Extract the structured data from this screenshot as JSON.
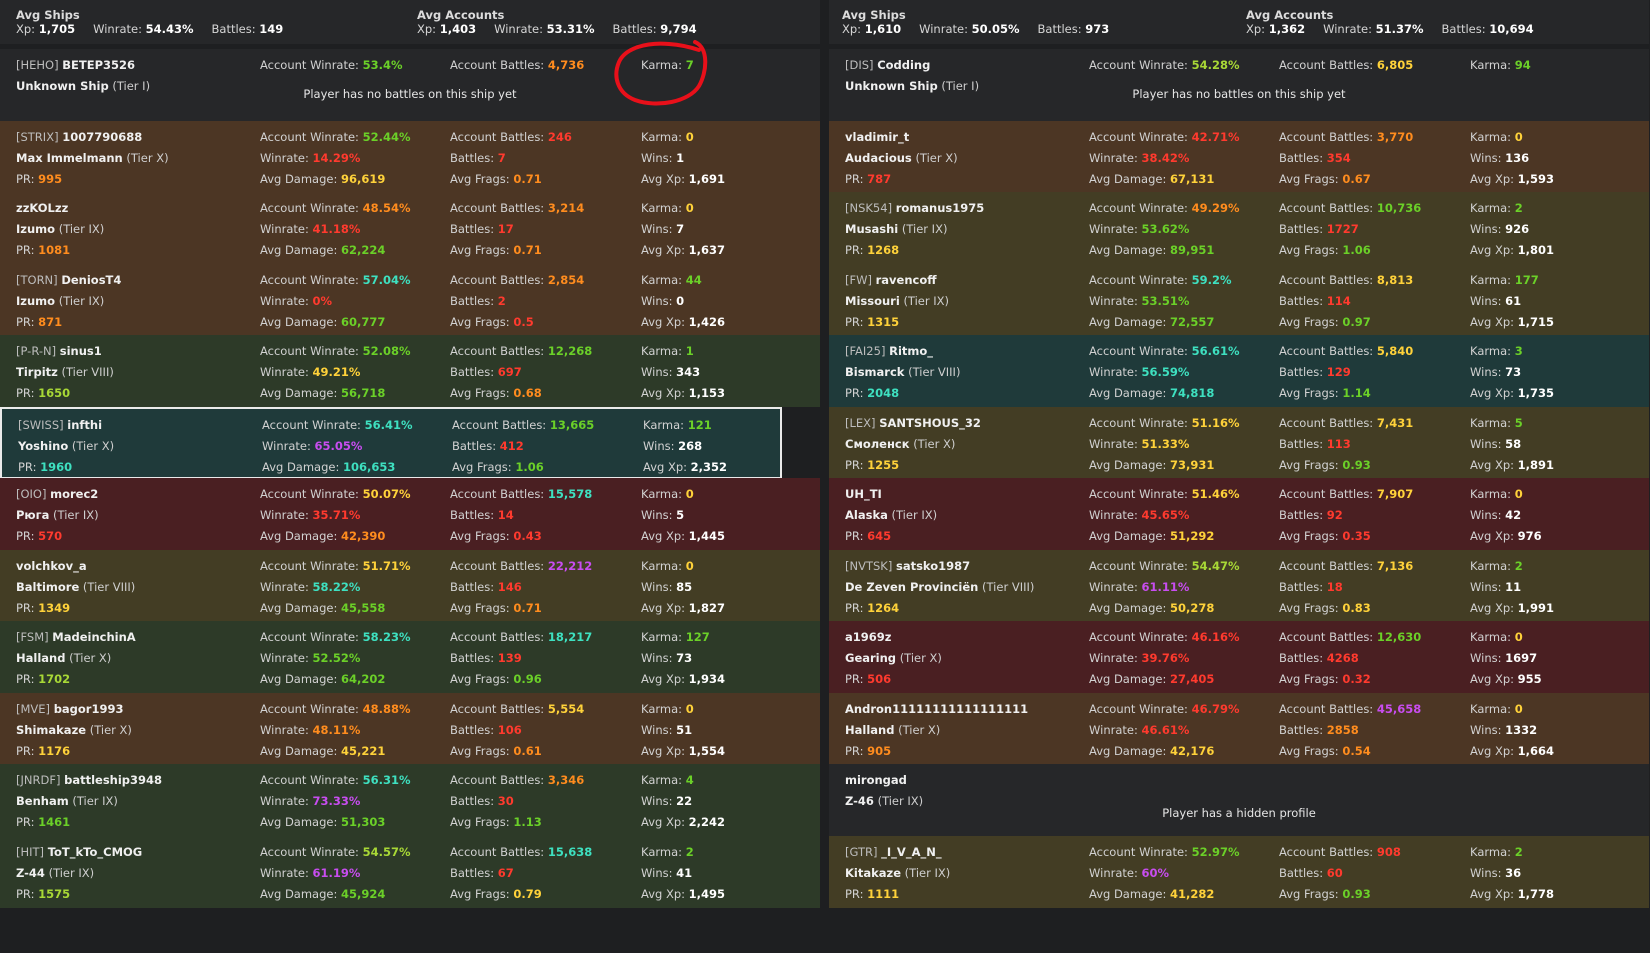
{
  "colors": {
    "green": "#6bd028",
    "lime": "#a8d836",
    "yellow": "#ffd23a",
    "orange": "#ff8c1e",
    "red": "#ff3a2e",
    "teal": "#3ee0c0",
    "purple": "#c84df0",
    "white": "#ffffff",
    "annotation": "#e8101a"
  },
  "teams": [
    {
      "summary": {
        "ships": {
          "title": "Avg Ships",
          "items": [
            {
              "label": "Xp:",
              "value": "1,705"
            },
            {
              "label": "Winrate:",
              "value": "54.43%"
            },
            {
              "label": "Battles:",
              "value": "149"
            }
          ]
        },
        "accounts": {
          "title": "Avg Accounts",
          "items": [
            {
              "label": "Xp:",
              "value": "1,403"
            },
            {
              "label": "Winrate:",
              "value": "53.31%"
            },
            {
              "label": "Battles:",
              "value": "9,794"
            }
          ]
        }
      },
      "players": [
        {
          "bg": "#262729",
          "clan": "[HEHO]",
          "name": "BETEP3526",
          "ship": "Unknown Ship",
          "tier": "(Tier I)",
          "acc_wr": "53.4%",
          "acc_wr_c": "green",
          "acc_b": "4,736",
          "acc_b_c": "orange",
          "karma": "7",
          "karma_c": "green",
          "message": "Player has no battles on this ship yet"
        },
        {
          "bg": "#4c3624",
          "clan": "[STRIX]",
          "name": "1007790688",
          "ship": "Max Immelmann",
          "tier": "(Tier X)",
          "acc_wr": "52.44%",
          "acc_wr_c": "green",
          "acc_b": "246",
          "acc_b_c": "red",
          "karma": "0",
          "karma_c": "yellow",
          "pr": "995",
          "pr_c": "orange",
          "wr": "14.29%",
          "wr_c": "red",
          "battles": "7",
          "battles_c": "red",
          "wins": "1",
          "dmg": "96,619",
          "dmg_c": "yellow",
          "frags": "0.71",
          "frags_c": "orange",
          "xp": "1,691"
        },
        {
          "bg": "#4c3624",
          "clan": "",
          "name": "zzKOLzz",
          "ship": "Izumo",
          "tier": "(Tier IX)",
          "acc_wr": "48.54%",
          "acc_wr_c": "orange",
          "acc_b": "3,214",
          "acc_b_c": "orange",
          "karma": "0",
          "karma_c": "yellow",
          "pr": "1081",
          "pr_c": "orange",
          "wr": "41.18%",
          "wr_c": "red",
          "battles": "17",
          "battles_c": "red",
          "wins": "7",
          "dmg": "62,224",
          "dmg_c": "green",
          "frags": "0.71",
          "frags_c": "orange",
          "xp": "1,637"
        },
        {
          "bg": "#4c3624",
          "clan": "[TORN]",
          "name": "DeniosT4",
          "ship": "Izumo",
          "tier": "(Tier IX)",
          "acc_wr": "57.04%",
          "acc_wr_c": "teal",
          "acc_b": "2,854",
          "acc_b_c": "orange",
          "karma": "44",
          "karma_c": "green",
          "pr": "871",
          "pr_c": "orange",
          "wr": "0%",
          "wr_c": "red",
          "battles": "2",
          "battles_c": "red",
          "wins": "0",
          "dmg": "60,777",
          "dmg_c": "green",
          "frags": "0.5",
          "frags_c": "red",
          "xp": "1,426"
        },
        {
          "bg": "#2d3a28",
          "clan": "[P-R-N]",
          "name": "sinus1",
          "ship": "Tirpitz",
          "tier": "(Tier VIII)",
          "acc_wr": "52.08%",
          "acc_wr_c": "green",
          "acc_b": "12,268",
          "acc_b_c": "green",
          "karma": "1",
          "karma_c": "green",
          "pr": "1650",
          "pr_c": "lime",
          "wr": "49.21%",
          "wr_c": "yellow",
          "battles": "697",
          "battles_c": "red",
          "wins": "343",
          "dmg": "56,718",
          "dmg_c": "green",
          "frags": "0.68",
          "frags_c": "orange",
          "xp": "1,153"
        },
        {
          "bg": "#1f3a3a",
          "clan": "[SWISS]",
          "name": "infthi",
          "ship": "Yoshino",
          "tier": "(Tier X)",
          "highlight": true,
          "acc_wr": "56.41%",
          "acc_wr_c": "teal",
          "acc_b": "13,665",
          "acc_b_c": "green",
          "karma": "121",
          "karma_c": "green",
          "pr": "1960",
          "pr_c": "teal",
          "wr": "65.05%",
          "wr_c": "purple",
          "battles": "412",
          "battles_c": "red",
          "wins": "268",
          "dmg": "106,653",
          "dmg_c": "teal",
          "frags": "1.06",
          "frags_c": "green",
          "xp": "2,352"
        },
        {
          "bg": "#4a1f22",
          "clan": "[OIO]",
          "name": "morec2",
          "ship": "Рюга",
          "tier": "(Tier IX)",
          "acc_wr": "50.07%",
          "acc_wr_c": "yellow",
          "acc_b": "15,578",
          "acc_b_c": "teal",
          "karma": "0",
          "karma_c": "yellow",
          "pr": "570",
          "pr_c": "red",
          "wr": "35.71%",
          "wr_c": "red",
          "battles": "14",
          "battles_c": "red",
          "wins": "5",
          "dmg": "42,390",
          "dmg_c": "orange",
          "frags": "0.43",
          "frags_c": "red",
          "xp": "1,445"
        },
        {
          "bg": "#433d24",
          "clan": "",
          "name": "volchkov_a",
          "ship": "Baltimore",
          "tier": "(Tier VIII)",
          "acc_wr": "51.71%",
          "acc_wr_c": "yellow",
          "acc_b": "22,212",
          "acc_b_c": "purple",
          "karma": "0",
          "karma_c": "yellow",
          "pr": "1349",
          "pr_c": "yellow",
          "wr": "58.22%",
          "wr_c": "teal",
          "battles": "146",
          "battles_c": "red",
          "wins": "85",
          "dmg": "45,558",
          "dmg_c": "green",
          "frags": "0.71",
          "frags_c": "orange",
          "xp": "1,827"
        },
        {
          "bg": "#2d3a28",
          "clan": "[FSM]",
          "name": "MadeinchinA",
          "ship": "Halland",
          "tier": "(Tier X)",
          "acc_wr": "58.23%",
          "acc_wr_c": "teal",
          "acc_b": "18,217",
          "acc_b_c": "teal",
          "karma": "127",
          "karma_c": "green",
          "pr": "1702",
          "pr_c": "lime",
          "wr": "52.52%",
          "wr_c": "green",
          "battles": "139",
          "battles_c": "red",
          "wins": "73",
          "dmg": "64,202",
          "dmg_c": "green",
          "frags": "0.96",
          "frags_c": "green",
          "xp": "1,934"
        },
        {
          "bg": "#4c3624",
          "clan": "[MVE]",
          "name": "bagor1993",
          "ship": "Shimakaze",
          "tier": "(Tier X)",
          "acc_wr": "48.88%",
          "acc_wr_c": "orange",
          "acc_b": "5,554",
          "acc_b_c": "yellow",
          "karma": "0",
          "karma_c": "yellow",
          "pr": "1176",
          "pr_c": "yellow",
          "wr": "48.11%",
          "wr_c": "orange",
          "battles": "106",
          "battles_c": "red",
          "wins": "51",
          "dmg": "45,221",
          "dmg_c": "yellow",
          "frags": "0.61",
          "frags_c": "orange",
          "xp": "1,554"
        },
        {
          "bg": "#2d3a28",
          "clan": "[JNRDF]",
          "name": "battleship3948",
          "ship": "Benham",
          "tier": "(Tier IX)",
          "acc_wr": "56.31%",
          "acc_wr_c": "teal",
          "acc_b": "3,346",
          "acc_b_c": "orange",
          "karma": "4",
          "karma_c": "green",
          "pr": "1461",
          "pr_c": "green",
          "wr": "73.33%",
          "wr_c": "purple",
          "battles": "30",
          "battles_c": "red",
          "wins": "22",
          "dmg": "51,303",
          "dmg_c": "green",
          "frags": "1.13",
          "frags_c": "green",
          "xp": "2,242"
        },
        {
          "bg": "#2d3a28",
          "clan": "[HIT]",
          "name": "ToT_kTo_CMOG",
          "ship": "Z-44",
          "tier": "(Tier IX)",
          "acc_wr": "54.57%",
          "acc_wr_c": "lime",
          "acc_b": "15,638",
          "acc_b_c": "teal",
          "karma": "2",
          "karma_c": "green",
          "pr": "1575",
          "pr_c": "lime",
          "wr": "61.19%",
          "wr_c": "purple",
          "battles": "67",
          "battles_c": "red",
          "wins": "41",
          "dmg": "45,924",
          "dmg_c": "green",
          "frags": "0.79",
          "frags_c": "yellow",
          "xp": "1,495"
        }
      ]
    },
    {
      "summary": {
        "ships": {
          "title": "Avg Ships",
          "items": [
            {
              "label": "Xp:",
              "value": "1,610"
            },
            {
              "label": "Winrate:",
              "value": "50.05%"
            },
            {
              "label": "Battles:",
              "value": "973"
            }
          ]
        },
        "accounts": {
          "title": "Avg Accounts",
          "items": [
            {
              "label": "Xp:",
              "value": "1,362"
            },
            {
              "label": "Winrate:",
              "value": "51.37%"
            },
            {
              "label": "Battles:",
              "value": "10,694"
            }
          ]
        }
      },
      "players": [
        {
          "bg": "#262729",
          "clan": "[DIS]",
          "name": "Codding",
          "ship": "Unknown Ship",
          "tier": "(Tier I)",
          "acc_wr": "54.28%",
          "acc_wr_c": "lime",
          "acc_b": "6,805",
          "acc_b_c": "yellow",
          "karma": "94",
          "karma_c": "green",
          "message": "Player has no battles on this ship yet"
        },
        {
          "bg": "#4c3624",
          "clan": "",
          "name": "vladimir_t",
          "ship": "Audacious",
          "tier": "(Tier X)",
          "acc_wr": "42.71%",
          "acc_wr_c": "red",
          "acc_b": "3,770",
          "acc_b_c": "orange",
          "karma": "0",
          "karma_c": "yellow",
          "pr": "787",
          "pr_c": "red",
          "wr": "38.42%",
          "wr_c": "red",
          "battles": "354",
          "battles_c": "red",
          "wins": "136",
          "dmg": "67,131",
          "dmg_c": "yellow",
          "frags": "0.67",
          "frags_c": "orange",
          "xp": "1,593"
        },
        {
          "bg": "#433d24",
          "clan": "[NSK54]",
          "name": "romanus1975",
          "ship": "Musashi",
          "tier": "(Tier IX)",
          "acc_wr": "49.29%",
          "acc_wr_c": "orange",
          "acc_b": "10,736",
          "acc_b_c": "green",
          "karma": "2",
          "karma_c": "green",
          "pr": "1268",
          "pr_c": "yellow",
          "wr": "53.62%",
          "wr_c": "green",
          "battles": "1727",
          "battles_c": "red",
          "wins": "926",
          "dmg": "89,951",
          "dmg_c": "green",
          "frags": "1.06",
          "frags_c": "green",
          "xp": "1,801"
        },
        {
          "bg": "#433d24",
          "clan": "[FW]",
          "name": "ravencoff",
          "ship": "Missouri",
          "tier": "(Tier IX)",
          "acc_wr": "59.2%",
          "acc_wr_c": "teal",
          "acc_b": "8,813",
          "acc_b_c": "yellow",
          "karma": "177",
          "karma_c": "green",
          "pr": "1315",
          "pr_c": "yellow",
          "wr": "53.51%",
          "wr_c": "green",
          "battles": "114",
          "battles_c": "red",
          "wins": "61",
          "dmg": "72,557",
          "dmg_c": "green",
          "frags": "0.97",
          "frags_c": "green",
          "xp": "1,715"
        },
        {
          "bg": "#1f3a3a",
          "clan": "[FAI25]",
          "name": "Ritmo_",
          "ship": "Bismarck",
          "tier": "(Tier VIII)",
          "acc_wr": "56.61%",
          "acc_wr_c": "teal",
          "acc_b": "5,840",
          "acc_b_c": "yellow",
          "karma": "3",
          "karma_c": "green",
          "pr": "2048",
          "pr_c": "teal",
          "wr": "56.59%",
          "wr_c": "teal",
          "battles": "129",
          "battles_c": "red",
          "wins": "73",
          "dmg": "74,818",
          "dmg_c": "teal",
          "frags": "1.14",
          "frags_c": "green",
          "xp": "1,735"
        },
        {
          "bg": "#433d24",
          "clan": "[LEX]",
          "name": "SANTSHOUS_32",
          "ship": "Смоленск",
          "tier": "(Tier X)",
          "acc_wr": "51.16%",
          "acc_wr_c": "yellow",
          "acc_b": "7,431",
          "acc_b_c": "yellow",
          "karma": "5",
          "karma_c": "green",
          "pr": "1255",
          "pr_c": "yellow",
          "wr": "51.33%",
          "wr_c": "yellow",
          "battles": "113",
          "battles_c": "red",
          "wins": "58",
          "dmg": "73,931",
          "dmg_c": "yellow",
          "frags": "0.93",
          "frags_c": "green",
          "xp": "1,891"
        },
        {
          "bg": "#4a1f22",
          "clan": "",
          "name": "UH_TI",
          "ship": "Alaska",
          "tier": "(Tier IX)",
          "acc_wr": "51.46%",
          "acc_wr_c": "yellow",
          "acc_b": "7,907",
          "acc_b_c": "yellow",
          "karma": "0",
          "karma_c": "yellow",
          "pr": "645",
          "pr_c": "red",
          "wr": "45.65%",
          "wr_c": "red",
          "battles": "92",
          "battles_c": "red",
          "wins": "42",
          "dmg": "51,292",
          "dmg_c": "yellow",
          "frags": "0.35",
          "frags_c": "red",
          "xp": "976"
        },
        {
          "bg": "#433d24",
          "clan": "[NVTSK]",
          "name": "satsko1987",
          "ship": "De Zeven Provinciën",
          "tier": "(Tier VIII)",
          "acc_wr": "54.47%",
          "acc_wr_c": "lime",
          "acc_b": "7,136",
          "acc_b_c": "yellow",
          "karma": "2",
          "karma_c": "green",
          "pr": "1264",
          "pr_c": "yellow",
          "wr": "61.11%",
          "wr_c": "purple",
          "battles": "18",
          "battles_c": "red",
          "wins": "11",
          "dmg": "50,278",
          "dmg_c": "yellow",
          "frags": "0.83",
          "frags_c": "yellow",
          "xp": "1,991"
        },
        {
          "bg": "#4a1f22",
          "clan": "",
          "name": "a1969z",
          "ship": "Gearing",
          "tier": "(Tier X)",
          "acc_wr": "46.16%",
          "acc_wr_c": "red",
          "acc_b": "12,630",
          "acc_b_c": "green",
          "karma": "0",
          "karma_c": "yellow",
          "pr": "506",
          "pr_c": "red",
          "wr": "39.76%",
          "wr_c": "red",
          "battles": "4268",
          "battles_c": "red",
          "wins": "1697",
          "dmg": "27,405",
          "dmg_c": "red",
          "frags": "0.32",
          "frags_c": "red",
          "xp": "955"
        },
        {
          "bg": "#4c3624",
          "clan": "",
          "name": "Andron11111111111111111",
          "ship": "Halland",
          "tier": "(Tier X)",
          "acc_wr": "46.79%",
          "acc_wr_c": "red",
          "acc_b": "45,658",
          "acc_b_c": "purple",
          "karma": "0",
          "karma_c": "yellow",
          "pr": "905",
          "pr_c": "orange",
          "wr": "46.61%",
          "wr_c": "red",
          "battles": "2858",
          "battles_c": "orange",
          "wins": "1332",
          "dmg": "42,176",
          "dmg_c": "yellow",
          "frags": "0.54",
          "frags_c": "orange",
          "xp": "1,664"
        },
        {
          "bg": "#262729",
          "clan": "",
          "name": "mirongad",
          "ship": "Z-46",
          "tier": "(Tier IX)",
          "hidden": true,
          "message": "Player has a hidden profile"
        },
        {
          "bg": "#433d24",
          "clan": "[GTR]",
          "name": "_I_V_A_N_",
          "ship": "Kitakaze",
          "tier": "(Tier IX)",
          "acc_wr": "52.97%",
          "acc_wr_c": "green",
          "acc_b": "908",
          "acc_b_c": "red",
          "karma": "2",
          "karma_c": "green",
          "pr": "1111",
          "pr_c": "yellow",
          "wr": "60%",
          "wr_c": "purple",
          "battles": "60",
          "battles_c": "red",
          "wins": "36",
          "dmg": "41,282",
          "dmg_c": "yellow",
          "frags": "0.93",
          "frags_c": "green",
          "xp": "1,778"
        }
      ]
    }
  ],
  "labels": {
    "acc_wr": "Account Winrate:",
    "acc_b": "Account Battles:",
    "karma": "Karma:",
    "wr": "Winrate:",
    "battles": "Battles:",
    "wins": "Wins:",
    "pr": "PR:",
    "dmg": "Avg Damage:",
    "frags": "Avg Frags:",
    "xp": "Avg Xp:"
  }
}
